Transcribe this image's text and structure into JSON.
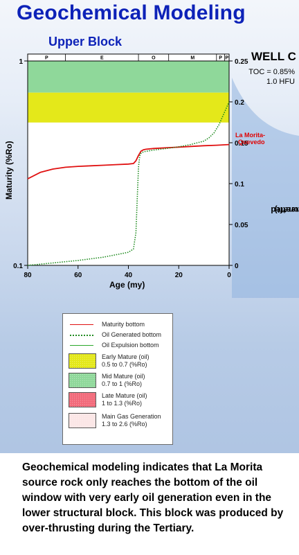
{
  "header": {
    "title": "Geochemical Modeling",
    "subtitle": "Upper Block"
  },
  "well": {
    "name": "WELL C",
    "toc": "TOC = 0.85%",
    "hfu": "1.0 HFU"
  },
  "curve_label": {
    "line1": "La Morita-",
    "line2": "Quevedo"
  },
  "axes": {
    "ylabel_left": "Maturity (%Ro)",
    "ylabel_right_line1": "Oil Generated",
    "ylabel_right_line2": "(bbls/acre*ft)",
    "xlabel": "Age (my)"
  },
  "chart_data": {
    "type": "line",
    "title": "",
    "xlabel": "Age (my)",
    "ylabel": "Maturity (%Ro)",
    "y2label": "Oil Generated (bbls/acre*ft)",
    "xlim": [
      80,
      0
    ],
    "ylim": [
      0.1,
      1
    ],
    "y_scale": "log",
    "y2lim": [
      0,
      0.25
    ],
    "x_ticks": [
      80,
      60,
      40,
      20,
      0
    ],
    "y_ticks": [
      "1",
      "0.1"
    ],
    "y2_ticks": [
      "0.25",
      "0.2",
      "0.15",
      "0.1",
      "0.05",
      "0"
    ],
    "periods": [
      {
        "label": "P",
        "start": 80,
        "end": 65
      },
      {
        "label": "E",
        "start": 65,
        "end": 36
      },
      {
        "label": "O",
        "start": 36,
        "end": 24
      },
      {
        "label": "M",
        "start": 24,
        "end": 5
      },
      {
        "label": "P",
        "start": 5,
        "end": 1.8
      },
      {
        "label": "P",
        "start": 1.8,
        "end": 0
      }
    ],
    "bands": [
      {
        "name": "Mid Mature (oil)",
        "from": 0.7,
        "to": 1.0,
        "color": "#8fd89a"
      },
      {
        "name": "Early Mature (oil)",
        "from": 0.5,
        "to": 0.7,
        "color": "#e4e81a"
      }
    ],
    "series": [
      {
        "name": "Maturity bottom",
        "axis": "left",
        "color": "#e01010",
        "style": "solid",
        "x": [
          80,
          75,
          70,
          65,
          60,
          55,
          50,
          45,
          40,
          38,
          37,
          36,
          35,
          34,
          33,
          30,
          25,
          20,
          15,
          10,
          5,
          0
        ],
        "y": [
          0.265,
          0.285,
          0.296,
          0.302,
          0.305,
          0.307,
          0.309,
          0.311,
          0.313,
          0.315,
          0.325,
          0.345,
          0.362,
          0.368,
          0.37,
          0.373,
          0.376,
          0.379,
          0.382,
          0.385,
          0.387,
          0.39
        ]
      },
      {
        "name": "Oil Generated bottom",
        "axis": "right",
        "color": "#1e8a1e",
        "style": "dotted",
        "x": [
          80,
          70,
          60,
          50,
          45,
          40,
          38,
          37,
          36.5,
          36,
          35.5,
          35,
          34,
          30,
          25,
          20,
          15,
          10,
          8,
          6,
          4,
          2,
          0
        ],
        "y": [
          0,
          0.003,
          0.006,
          0.01,
          0.013,
          0.016,
          0.02,
          0.04,
          0.08,
          0.12,
          0.134,
          0.137,
          0.139,
          0.141,
          0.143,
          0.145,
          0.148,
          0.152,
          0.156,
          0.162,
          0.172,
          0.186,
          0.2
        ]
      },
      {
        "name": "Oil Expulsion bottom",
        "axis": "right",
        "color": "#2aa82a",
        "style": "solid",
        "x": [],
        "y": []
      }
    ]
  },
  "legend": {
    "items": [
      {
        "kind": "line",
        "label1": "Maturity bottom",
        "label2": "",
        "color": "#e01010",
        "style": "solid"
      },
      {
        "kind": "line",
        "label1": "Oil Generated bottom",
        "label2": "",
        "color": "#1e8a1e",
        "style": "dotted"
      },
      {
        "kind": "line",
        "label1": "Oil Expulsion bottom",
        "label2": "",
        "color": "#2aa82a",
        "style": "solid"
      },
      {
        "kind": "swatch",
        "label1": "Early Mature (oil)",
        "label2": "0.5 to 0.7 (%Ro)",
        "color": "#e4e81a"
      },
      {
        "kind": "swatch",
        "label1": "Mid Mature (oil)",
        "label2": "0.7 to 1 (%Ro)",
        "color": "#8fd89a"
      },
      {
        "kind": "swatch",
        "label1": "Late Mature (oil)",
        "label2": "1 to 1.3 (%Ro)",
        "color": "#f26a7a"
      },
      {
        "kind": "swatch",
        "label1": "Main Gas Generation",
        "label2": "1.3 to 2.6 (%Ro)",
        "color": "#fbe6e6"
      }
    ]
  },
  "description": "Geochemical modeling  indicates that La Morita source rock only reaches the bottom of the oil window with very early oil generation even in the lower structural block. This block was produced by over-thrusting during the Tertiary."
}
